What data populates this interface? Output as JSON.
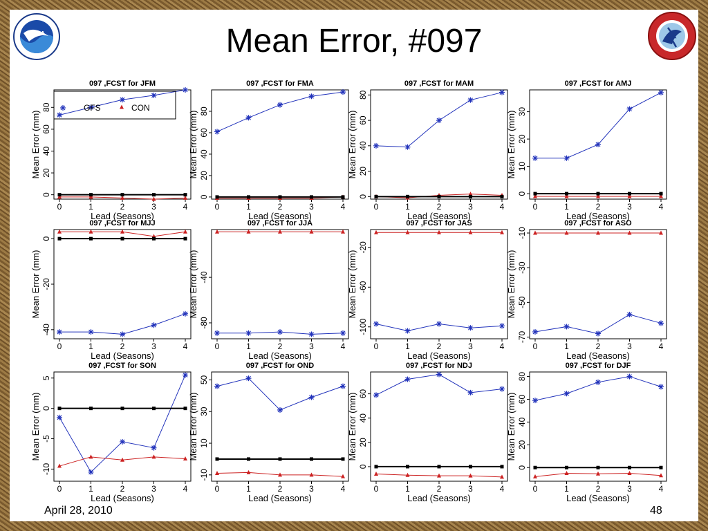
{
  "slide": {
    "title": "Mean Error, #097",
    "date": "April 28, 2010",
    "page_number": "48",
    "logo_left_icon": "noaa-logo-icon",
    "logo_right_icon": "nws-logo-icon"
  },
  "chart_data": [
    {
      "type": "line",
      "title": "097 ,FCST for JFM",
      "xlabel": "Lead (Seasons)",
      "ylabel": "Mean Error (mm)",
      "x": [
        0,
        1,
        2,
        3,
        4
      ],
      "ylim": [
        -4,
        96
      ],
      "yticks": [
        0,
        20,
        40,
        60,
        80
      ],
      "legend": {
        "placement": "top-left",
        "entries": [
          "GFS",
          "CON"
        ]
      },
      "series": [
        {
          "name": "GFS",
          "color": "#2233bb",
          "marker": "star",
          "values": [
            73,
            80,
            87,
            91,
            96
          ]
        },
        {
          "name": "CON",
          "color": "#cc2222",
          "marker": "triangle",
          "values": [
            -2,
            -2,
            -3,
            -4,
            -3
          ]
        },
        {
          "color": "#000000",
          "marker": "square",
          "values": [
            0,
            0,
            0,
            0,
            0
          ]
        }
      ]
    },
    {
      "type": "line",
      "title": "097 ,FCST for FMA",
      "xlabel": "Lead (Seasons)",
      "ylabel": "Mean Error (mm)",
      "x": [
        0,
        1,
        2,
        3,
        4
      ],
      "ylim": [
        -2,
        100
      ],
      "yticks": [
        0,
        20,
        40,
        60,
        80
      ],
      "series": [
        {
          "color": "#2233bb",
          "marker": "star",
          "values": [
            61,
            74,
            86,
            94,
            98
          ]
        },
        {
          "color": "#cc2222",
          "marker": "triangle",
          "values": [
            -1,
            -1,
            -1,
            -1,
            0
          ]
        },
        {
          "color": "#000000",
          "marker": "square",
          "values": [
            0,
            0,
            0,
            0,
            0
          ]
        }
      ]
    },
    {
      "type": "line",
      "title": "097 ,FCST for MAM",
      "xlabel": "Lead (Seasons)",
      "ylabel": "Mean Error (mm)",
      "x": [
        0,
        1,
        2,
        3,
        4
      ],
      "ylim": [
        -2,
        84
      ],
      "yticks": [
        0,
        20,
        40,
        60,
        80
      ],
      "series": [
        {
          "color": "#2233bb",
          "marker": "star",
          "values": [
            40,
            39,
            60,
            76,
            82
          ]
        },
        {
          "color": "#cc2222",
          "marker": "triangle",
          "values": [
            0,
            -1,
            1,
            2,
            1
          ]
        },
        {
          "color": "#000000",
          "marker": "square",
          "values": [
            0,
            0,
            0,
            0,
            0
          ]
        }
      ]
    },
    {
      "type": "line",
      "title": "097 ,FCST for AMJ",
      "xlabel": "Lead (Seasons)",
      "ylabel": "Mean Error (mm)",
      "x": [
        0,
        1,
        2,
        3,
        4
      ],
      "ylim": [
        -2,
        38
      ],
      "yticks": [
        0,
        10,
        20,
        30
      ],
      "series": [
        {
          "color": "#2233bb",
          "marker": "star",
          "values": [
            13,
            13,
            18,
            31,
            37
          ]
        },
        {
          "color": "#cc2222",
          "marker": "triangle",
          "values": [
            -1,
            -1,
            -1,
            -1,
            -1
          ]
        },
        {
          "color": "#000000",
          "marker": "square",
          "values": [
            0,
            0,
            0,
            0,
            0
          ]
        }
      ]
    },
    {
      "type": "line",
      "title": "097 ,FCST for MJJ",
      "xlabel": "Lead (Seasons)",
      "ylabel": "Mean Error (mm)",
      "x": [
        0,
        1,
        2,
        3,
        4
      ],
      "ylim": [
        -44,
        4
      ],
      "yticks": [
        0,
        -20,
        -40
      ],
      "series": [
        {
          "color": "#2233bb",
          "marker": "star",
          "values": [
            -41,
            -41,
            -42,
            -38,
            -33
          ]
        },
        {
          "color": "#cc2222",
          "marker": "triangle",
          "values": [
            3,
            3,
            3,
            1,
            3
          ]
        },
        {
          "color": "#000000",
          "marker": "square",
          "values": [
            0,
            0,
            0,
            0,
            0
          ]
        }
      ]
    },
    {
      "type": "line",
      "title": "097 ,FCST for JJA",
      "xlabel": "Lead (Seasons)",
      "ylabel": "Mean Error (mm)",
      "x": [
        0,
        1,
        2,
        3,
        4
      ],
      "ylim": [
        -94,
        2
      ],
      "yticks": [
        -40,
        -80
      ],
      "series": [
        {
          "color": "#2233bb",
          "marker": "star",
          "values": [
            -89,
            -89,
            -88,
            -90,
            -89
          ]
        },
        {
          "color": "#cc2222",
          "marker": "triangle",
          "values": [
            0,
            0,
            0,
            0,
            0
          ]
        }
      ]
    },
    {
      "type": "line",
      "title": "097 ,FCST for JAS",
      "xlabel": "Lead (Seasons)",
      "ylabel": "Mean Error (mm)",
      "x": [
        0,
        1,
        2,
        3,
        4
      ],
      "ylim": [
        -112,
        -2
      ],
      "yticks": [
        -20,
        -60,
        -100
      ],
      "series": [
        {
          "color": "#2233bb",
          "marker": "star",
          "values": [
            -97,
            -104,
            -97,
            -101,
            -99
          ]
        },
        {
          "color": "#cc2222",
          "marker": "triangle",
          "values": [
            -5,
            -5,
            -5,
            -5,
            -5
          ]
        }
      ]
    },
    {
      "type": "line",
      "title": "097 ,FCST for ASO",
      "xlabel": "Lead (Seasons)",
      "ylabel": "Mean Error (mm)",
      "x": [
        0,
        1,
        2,
        3,
        4
      ],
      "ylim": [
        -71,
        -8
      ],
      "yticks": [
        -10,
        -30,
        -50,
        -70
      ],
      "series": [
        {
          "color": "#2233bb",
          "marker": "star",
          "values": [
            -67,
            -64,
            -68,
            -57,
            -62
          ]
        },
        {
          "color": "#cc2222",
          "marker": "triangle",
          "values": [
            -10,
            -10,
            -10,
            -10,
            -10
          ]
        }
      ]
    },
    {
      "type": "line",
      "title": "097 ,FCST for SON",
      "xlabel": "Lead (Seasons)",
      "ylabel": "Mean Error (mm)",
      "x": [
        0,
        1,
        2,
        3,
        4
      ],
      "ylim": [
        -12,
        6
      ],
      "yticks": [
        5,
        0,
        -5,
        -10
      ],
      "series": [
        {
          "color": "#2233bb",
          "marker": "star",
          "values": [
            -1.5,
            -10.5,
            -5.5,
            -6.5,
            5.5
          ]
        },
        {
          "color": "#cc2222",
          "marker": "triangle",
          "values": [
            -9.5,
            -8,
            -8.5,
            -8,
            -8.3
          ]
        },
        {
          "color": "#000000",
          "marker": "square",
          "values": [
            0,
            0,
            0,
            0,
            0
          ]
        }
      ]
    },
    {
      "type": "line",
      "title": "097 ,FCST for OND",
      "xlabel": "Lead (Seasons)",
      "ylabel": "Mean Error (mm)",
      "x": [
        0,
        1,
        2,
        3,
        4
      ],
      "ylim": [
        -14,
        55
      ],
      "yticks": [
        50,
        30,
        10,
        -10
      ],
      "series": [
        {
          "color": "#2233bb",
          "marker": "star",
          "values": [
            46,
            51,
            31,
            39,
            46
          ]
        },
        {
          "color": "#cc2222",
          "marker": "triangle",
          "values": [
            -9,
            -8.5,
            -10,
            -10,
            -11
          ]
        },
        {
          "color": "#000000",
          "marker": "square",
          "values": [
            0,
            0,
            0,
            0,
            0
          ]
        }
      ]
    },
    {
      "type": "line",
      "title": "097 ,FCST for NDJ",
      "xlabel": "Lead (Seasons)",
      "ylabel": "Mean Error (mm)",
      "x": [
        0,
        1,
        2,
        3,
        4
      ],
      "ylim": [
        -12,
        78
      ],
      "yticks": [
        0,
        20,
        40,
        60
      ],
      "series": [
        {
          "color": "#2233bb",
          "marker": "star",
          "values": [
            59,
            72,
            76,
            61,
            64
          ]
        },
        {
          "color": "#cc2222",
          "marker": "triangle",
          "values": [
            -6,
            -7,
            -7.5,
            -7.5,
            -8.5
          ]
        },
        {
          "color": "#000000",
          "marker": "square",
          "values": [
            0,
            0,
            0,
            0,
            0
          ]
        }
      ]
    },
    {
      "type": "line",
      "title": "097 ,FCST for DJF",
      "xlabel": "Lead (Seasons)",
      "ylabel": "Mean Error (mm)",
      "x": [
        0,
        1,
        2,
        3,
        4
      ],
      "ylim": [
        -12,
        84
      ],
      "yticks": [
        0,
        20,
        40,
        60,
        80
      ],
      "series": [
        {
          "color": "#2233bb",
          "marker": "star",
          "values": [
            59,
            65,
            75,
            80,
            71
          ]
        },
        {
          "color": "#cc2222",
          "marker": "triangle",
          "values": [
            -8,
            -5,
            -5.5,
            -5,
            -7
          ]
        },
        {
          "color": "#000000",
          "marker": "square",
          "values": [
            0,
            0,
            0,
            0,
            0
          ]
        }
      ]
    }
  ]
}
